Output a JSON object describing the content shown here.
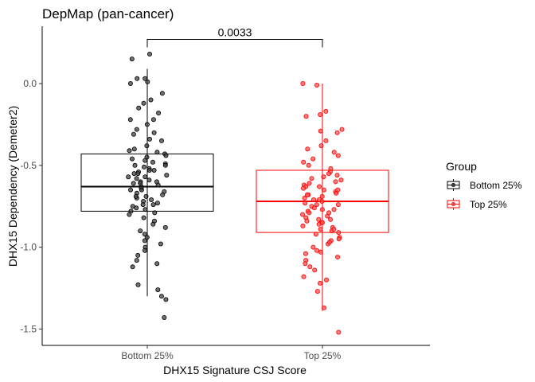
{
  "chart_data": {
    "type": "box",
    "title": "DepMap (pan-cancer)",
    "xlabel": "DHX15 Signature CSJ Score",
    "ylabel": "DHX15 Dependency (Demeter2)",
    "ylim": [
      -1.6,
      0.35
    ],
    "yticks": [
      {
        "value": 0.0,
        "label": "0.0"
      },
      {
        "value": -0.5,
        "label": "-0.5"
      },
      {
        "value": -1.0,
        "label": "-1.0"
      },
      {
        "value": -1.5,
        "label": "-1.5"
      }
    ],
    "categories": [
      "Bottom 25%",
      "Top 25%"
    ],
    "legend": {
      "title": "Group",
      "position": "right"
    },
    "grid": false,
    "significance": {
      "label": "0.0033",
      "y": 0.27
    },
    "series": [
      {
        "name": "Bottom 25%",
        "color": "#000000",
        "point_color": "#404040",
        "box": {
          "whisker_low": -1.3,
          "q1": -0.78,
          "median": -0.63,
          "q3": -0.43,
          "whisker_high": 0.09
        },
        "points": [
          -0.45,
          0.18,
          0.15,
          0.03,
          0.03,
          0.01,
          0.0,
          -0.06,
          -0.1,
          -0.12,
          -0.15,
          -0.18,
          -0.22,
          -0.22,
          -0.25,
          -0.28,
          -0.3,
          -0.31,
          -0.34,
          -0.38,
          -0.4,
          -0.41,
          -0.43,
          -0.44,
          -0.46,
          -0.47,
          -0.49,
          -0.5,
          -0.51,
          -0.52,
          -0.53,
          -0.54,
          -0.55,
          -0.56,
          -0.57,
          -0.58,
          -0.59,
          -0.6,
          -0.61,
          -0.62,
          -0.63,
          -0.64,
          -0.65,
          -0.66,
          -0.67,
          -0.68,
          -0.69,
          -0.7,
          -0.71,
          -0.72,
          -0.73,
          -0.74,
          -0.75,
          -0.76,
          -0.77,
          -0.78,
          -0.8,
          -0.82,
          -0.84,
          -0.86,
          -0.88,
          -0.9,
          -0.92,
          -0.94,
          -0.96,
          -0.98,
          -1.0,
          -1.02,
          -1.05,
          -1.08,
          -1.1,
          -1.12,
          -1.23,
          -1.26,
          -1.3,
          -1.32,
          -1.43,
          -0.35,
          -0.42,
          -0.48,
          -0.53,
          -0.57,
          -0.61,
          -0.65,
          -0.69,
          -0.74,
          -0.79,
          -0.6,
          -0.55,
          -0.5
        ]
      },
      {
        "name": "Top 25%",
        "color": "#ff0000",
        "point_color": "#ff4d4d",
        "box": {
          "whisker_low": -1.39,
          "q1": -0.91,
          "median": -0.72,
          "q3": -0.53,
          "whisker_high": 0.0
        },
        "points": [
          0.0,
          -0.01,
          -0.17,
          -0.19,
          -0.2,
          -0.28,
          -0.29,
          -0.3,
          -0.35,
          -0.38,
          -0.4,
          -0.42,
          -0.44,
          -0.46,
          -0.48,
          -0.5,
          -0.52,
          -0.54,
          -0.55,
          -0.56,
          -0.58,
          -0.6,
          -0.61,
          -0.62,
          -0.63,
          -0.64,
          -0.65,
          -0.66,
          -0.67,
          -0.68,
          -0.69,
          -0.7,
          -0.71,
          -0.72,
          -0.73,
          -0.74,
          -0.75,
          -0.76,
          -0.77,
          -0.78,
          -0.79,
          -0.8,
          -0.81,
          -0.82,
          -0.83,
          -0.84,
          -0.85,
          -0.86,
          -0.87,
          -0.88,
          -0.89,
          -0.9,
          -0.92,
          -0.94,
          -0.96,
          -0.98,
          -1.0,
          -1.02,
          -1.04,
          -1.06,
          -1.08,
          -1.1,
          -1.12,
          -1.14,
          -1.18,
          -1.2,
          -1.22,
          -1.27,
          -1.37,
          -1.52,
          -0.57,
          -0.63,
          -0.68,
          -0.74,
          -0.79,
          -0.85,
          -0.91,
          -0.97,
          -1.03,
          -0.59,
          -0.65,
          -0.71,
          -0.77,
          -0.83,
          -0.89,
          -0.95
        ]
      }
    ]
  }
}
